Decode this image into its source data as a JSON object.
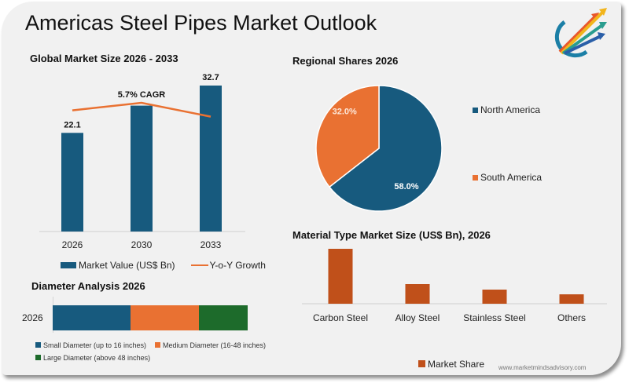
{
  "page": {
    "title": "Americas Steel Pipes Market Outlook",
    "logo_icon": "arrows-growth-logo-icon",
    "website": "www.marketmindsadvisory.com"
  },
  "colors": {
    "blue": "#175a7e",
    "orange": "#e97132",
    "green": "#1d6b2b",
    "rust": "#c0501a",
    "background": "#f1f1f1"
  },
  "chart_data": [
    {
      "id": "global-market-size",
      "type": "bar",
      "title": "Global Market Size 2026 - 2033",
      "categories": [
        "2026",
        "2030",
        "2033"
      ],
      "series": [
        {
          "name": "Market Value (US$ Bn)",
          "type": "bar",
          "values": [
            22.1,
            28.2,
            32.7
          ],
          "labels": [
            "22.1",
            "",
            "32.7"
          ]
        },
        {
          "name": "Y-o-Y Growth",
          "type": "line",
          "values": [
            5.5,
            6.1,
            5.0
          ]
        }
      ],
      "annotation": "5.7% CAGR",
      "xlabel": "",
      "ylabel": "",
      "ylim": [
        0,
        32.7
      ],
      "grid": false,
      "legend": "bottom"
    },
    {
      "id": "regional-shares",
      "type": "pie",
      "title": "Regional Shares 2026",
      "categories": [
        "North America",
        "South America"
      ],
      "values": [
        58.0,
        32.0
      ],
      "labels": [
        "58.0%",
        "32.0%"
      ],
      "legend": "right"
    },
    {
      "id": "material-type",
      "type": "bar",
      "title": "Material Type Market Size (US$ Bn), 2026",
      "categories": [
        "Carbon Steel",
        "Alloy Steel",
        "Stainless Steel",
        "Others"
      ],
      "series": [
        {
          "name": "Market Share",
          "values": [
            70,
            25,
            18,
            12
          ]
        }
      ],
      "xlabel": "",
      "ylabel": "",
      "ylim": [
        0,
        70
      ],
      "grid": false,
      "legend": "bottom"
    },
    {
      "id": "diameter-analysis",
      "type": "bar",
      "orientation": "horizontal-stacked",
      "title": "Diameter Analysis 2026",
      "categories": [
        "2026"
      ],
      "series": [
        {
          "name": "Small Diameter (up to 16 inches)",
          "values": [
            40
          ]
        },
        {
          "name": "Medium Diameter (16-48 inches)",
          "values": [
            35
          ]
        },
        {
          "name": "Large Diameter (above 48 inches)",
          "values": [
            25
          ]
        }
      ],
      "xlim": [
        0,
        100
      ],
      "grid": false,
      "legend": "bottom"
    }
  ]
}
